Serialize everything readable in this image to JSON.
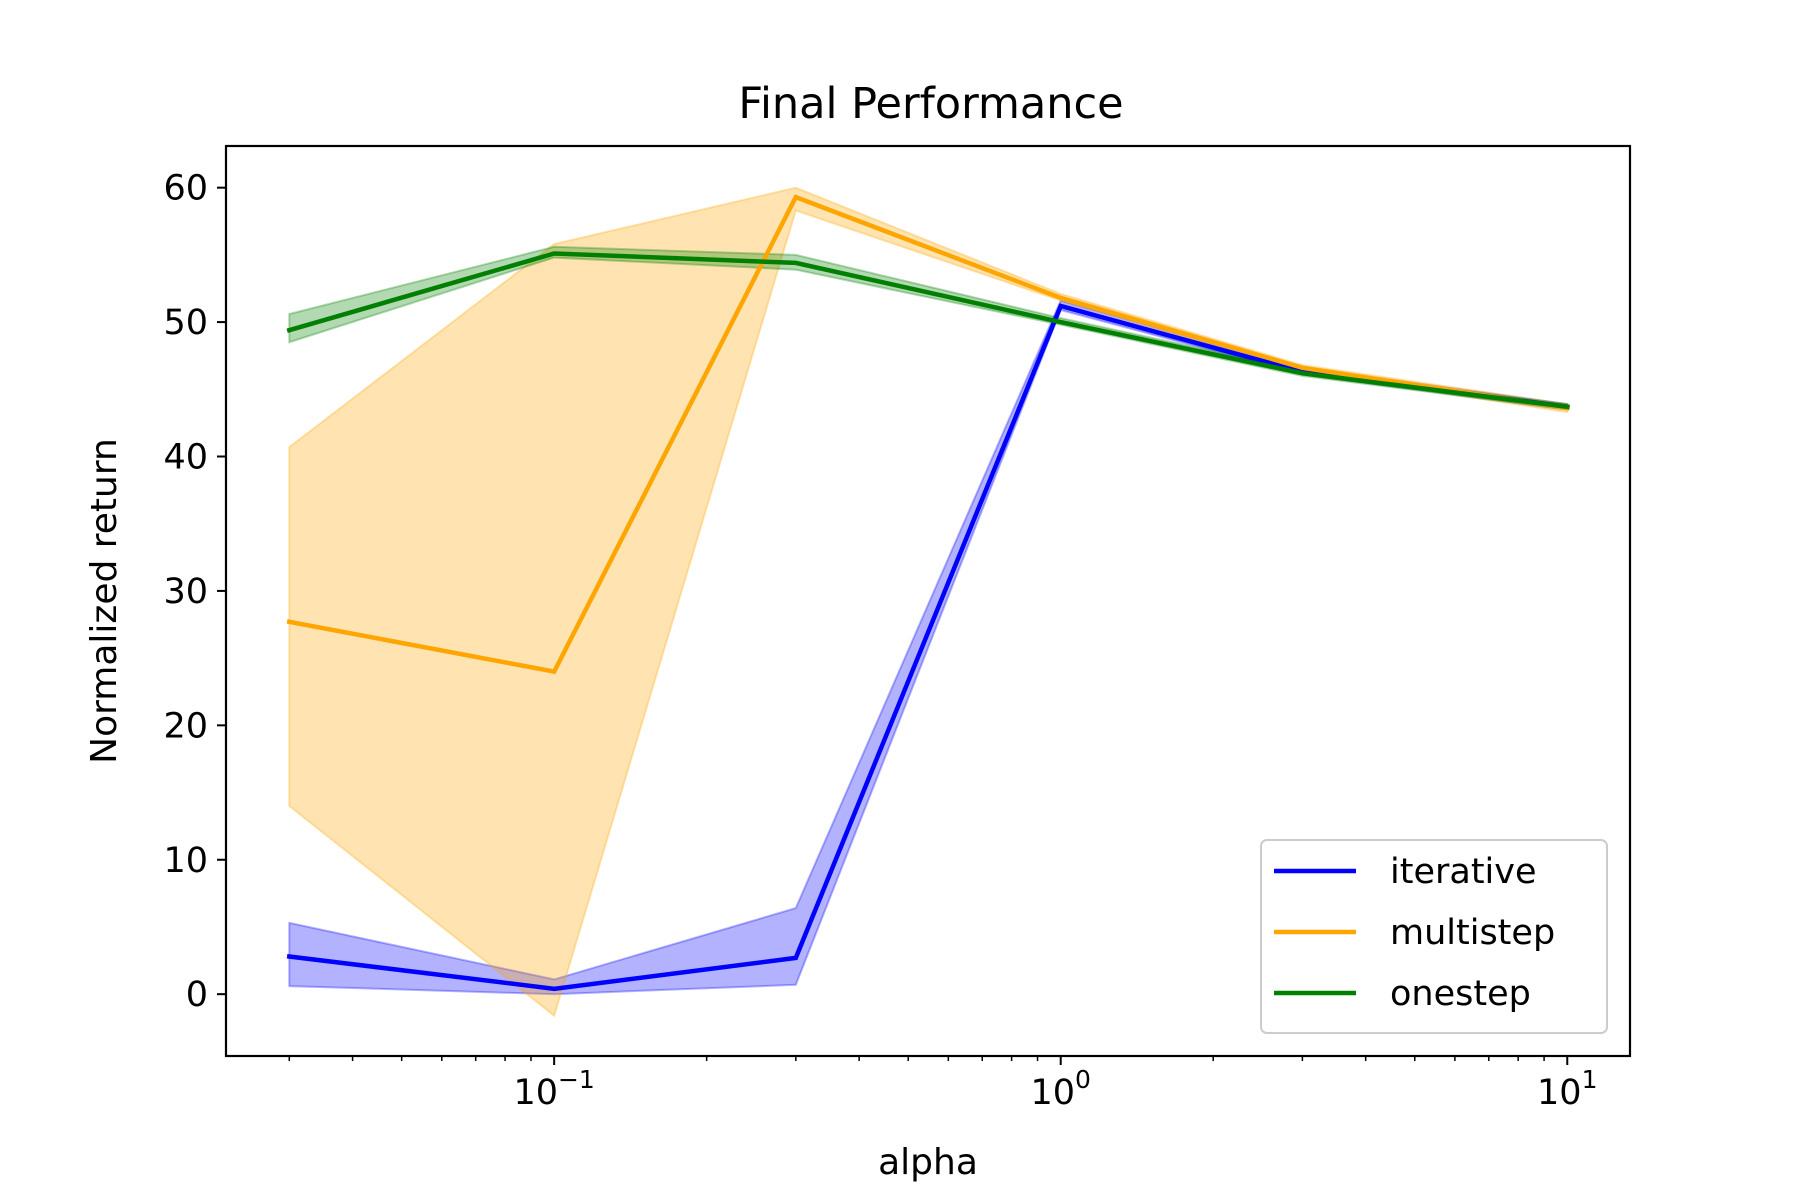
{
  "chart_data": {
    "type": "line",
    "title": "Final Performance",
    "xlabel": "alpha",
    "ylabel": "Normalized return",
    "xscale": "log",
    "xlim": [
      0.0225,
      13.3
    ],
    "ylim": [
      -4.6,
      63.1
    ],
    "grid": false,
    "legend_position": "lower-right",
    "x": [
      0.03,
      0.1,
      0.3,
      1,
      3,
      10
    ],
    "x_ticks": [
      {
        "value": 0.1,
        "base": "10",
        "exp": "−1"
      },
      {
        "value": 1,
        "base": "10",
        "exp": "0"
      },
      {
        "value": 10,
        "base": "10",
        "exp": "1"
      }
    ],
    "y_ticks": [
      0,
      10,
      20,
      30,
      40,
      50,
      60
    ],
    "y_tick_labels": [
      "0",
      "10",
      "20",
      "30",
      "40",
      "50",
      "60"
    ],
    "series": [
      {
        "name": "iterative",
        "color": "#0000ff",
        "values": [
          2.8,
          0.4,
          2.7,
          51.2,
          46.3,
          43.7
        ],
        "lower": [
          0.6,
          0.0,
          0.7,
          50.9,
          46.1,
          43.5
        ],
        "upper": [
          5.3,
          1.1,
          6.4,
          51.6,
          46.6,
          43.9
        ]
      },
      {
        "name": "multistep",
        "color": "#ffa500",
        "values": [
          27.7,
          24.0,
          59.3,
          51.8,
          46.6,
          43.6
        ],
        "lower": [
          14.0,
          -1.6,
          58.3,
          51.6,
          46.3,
          43.3
        ],
        "upper": [
          40.7,
          55.8,
          60.0,
          52.1,
          46.8,
          43.9
        ]
      },
      {
        "name": "onestep",
        "color": "#008000",
        "values": [
          49.4,
          55.1,
          54.4,
          50.0,
          46.2,
          43.7
        ],
        "lower": [
          48.5,
          54.8,
          53.9,
          49.8,
          46.0,
          43.5
        ],
        "upper": [
          50.6,
          55.6,
          55.0,
          50.3,
          46.4,
          43.9
        ]
      }
    ]
  }
}
